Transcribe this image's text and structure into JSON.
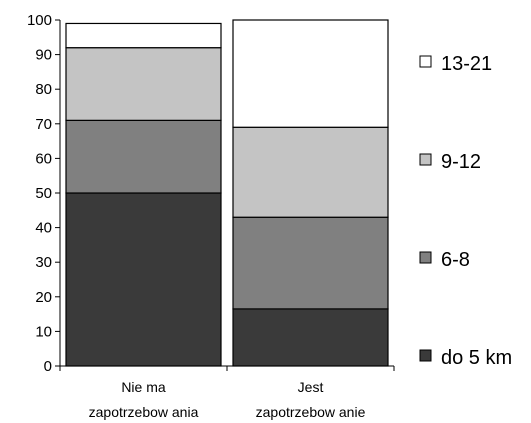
{
  "chart_data": {
    "type": "bar",
    "stacked": true,
    "title": "",
    "xlabel": "",
    "ylabel": "",
    "ylim": [
      0,
      100
    ],
    "yticks": [
      0,
      10,
      20,
      30,
      40,
      50,
      60,
      70,
      80,
      90,
      100
    ],
    "categories": [
      [
        "Nie ma",
        "zapotrzebow ania"
      ],
      [
        "Jest",
        "zapotrzebow anie"
      ]
    ],
    "series": [
      {
        "name": "do 5 km",
        "values": [
          50,
          16.5
        ],
        "color": "#3a3a3a"
      },
      {
        "name": "6-8",
        "values": [
          21,
          26.5
        ],
        "color": "#808080"
      },
      {
        "name": "9-12",
        "values": [
          21,
          26
        ],
        "color": "#c4c4c4"
      },
      {
        "name": "13-21",
        "values": [
          7,
          31
        ],
        "color": "#ffffff"
      }
    ],
    "legend_placement": "right",
    "legend_order": [
      "13-21",
      "9-12",
      "6-8",
      "do 5 km"
    ],
    "grid": false
  }
}
